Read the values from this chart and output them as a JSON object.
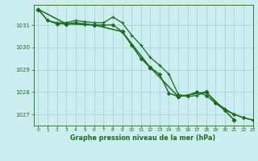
{
  "background_color": "#cceef0",
  "grid_color": "#aad8dc",
  "line_color": "#1a6b1a",
  "title": "Graphe pression niveau de la mer (hPa)",
  "xlim": [
    -0.5,
    23
  ],
  "ylim": [
    1026.5,
    1031.9
  ],
  "yticks": [
    1027,
    1028,
    1029,
    1030,
    1031
  ],
  "xticks": [
    0,
    1,
    2,
    3,
    4,
    5,
    6,
    7,
    8,
    9,
    10,
    11,
    12,
    13,
    14,
    15,
    16,
    17,
    18,
    19,
    20,
    21,
    22,
    23
  ],
  "series": [
    {
      "x": [
        0,
        1,
        2,
        3,
        4,
        5,
        6,
        7,
        8,
        9,
        10,
        11,
        12,
        13,
        14,
        15,
        16,
        17,
        18,
        19,
        20,
        21,
        22,
        23
      ],
      "y": [
        1031.7,
        1031.2,
        1031.05,
        1031.05,
        1031.1,
        1031.05,
        1031.0,
        1031.0,
        1031.0,
        1030.7,
        1030.1,
        1029.5,
        1029.1,
        1028.8,
        1027.95,
        1027.8,
        1027.85,
        1028.0,
        1027.85,
        1027.5,
        1027.2,
        1027.0,
        1026.85,
        1026.75
      ],
      "marker": "D",
      "markersize": 2.0,
      "linewidth": 1.0
    },
    {
      "x": [
        0,
        1,
        2,
        3,
        4,
        5,
        6,
        7,
        8,
        9,
        10,
        11,
        12,
        13,
        14,
        15,
        16,
        17,
        18,
        19,
        20,
        21,
        22,
        23
      ],
      "y": [
        1031.7,
        1031.2,
        1031.1,
        1031.1,
        1031.2,
        1031.15,
        1031.1,
        1031.1,
        1031.35,
        1031.1,
        1030.55,
        1030.1,
        1029.55,
        1029.2,
        1028.8,
        1027.9,
        1027.8,
        1027.85,
        1028.0,
        1027.55,
        1027.25,
        1027.0,
        1026.85,
        1026.75
      ],
      "marker": "+",
      "markersize": 3.5,
      "linewidth": 0.9
    },
    {
      "x": [
        0,
        3,
        6,
        9,
        12,
        15,
        18,
        21
      ],
      "y": [
        1031.7,
        1031.05,
        1031.0,
        1030.7,
        1029.1,
        1027.8,
        1028.0,
        1026.75
      ],
      "marker": "D",
      "markersize": 2.5,
      "linewidth": 1.1
    }
  ]
}
